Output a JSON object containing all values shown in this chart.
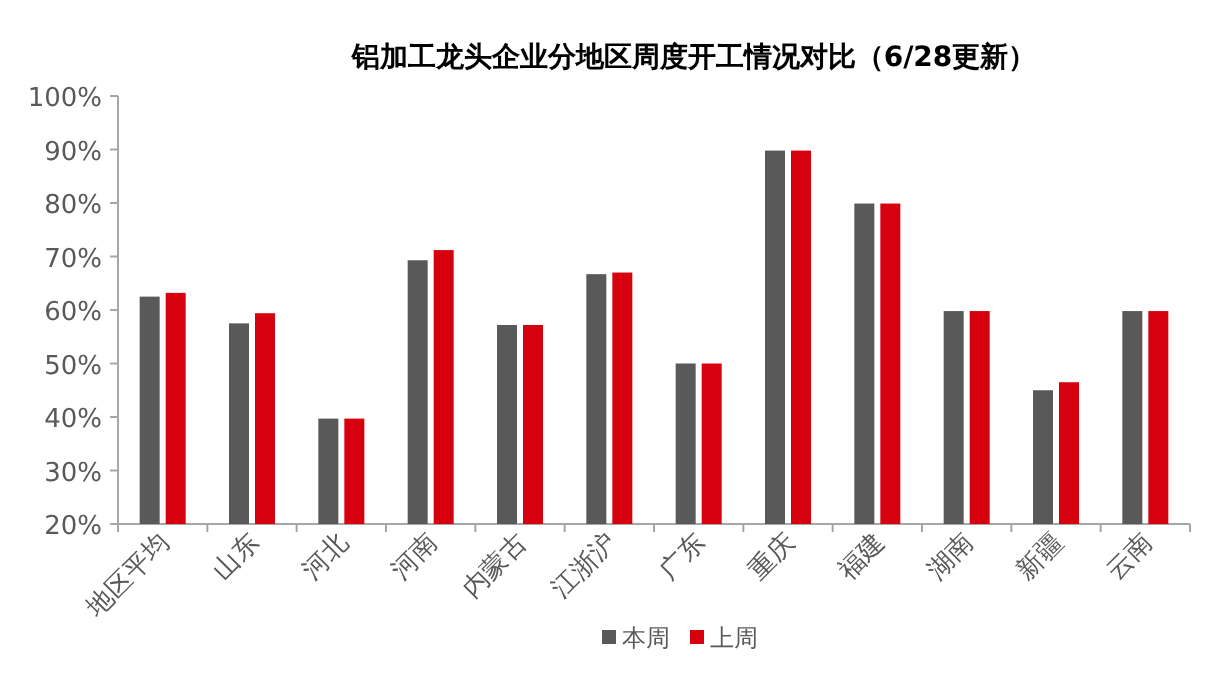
{
  "chart_data": {
    "type": "bar",
    "title": "铝加工龙头企业分地区周度开工情况对比（6/28更新）",
    "categories": [
      "地区平均",
      "山东",
      "河北",
      "河南",
      "内蒙古",
      "江浙沪",
      "广东",
      "重庆",
      "福建",
      "湖南",
      "新疆",
      "云南"
    ],
    "series": [
      {
        "name": "本周",
        "color": "#595959",
        "values": [
          62.5,
          57.5,
          39.7,
          69.3,
          57.2,
          66.7,
          50,
          89.8,
          79.9,
          59.8,
          45,
          59.8
        ]
      },
      {
        "name": "上周",
        "color": "#d7000f",
        "values": [
          63.2,
          59.4,
          39.7,
          71.2,
          57.2,
          67,
          50,
          89.8,
          79.9,
          59.8,
          46.5,
          59.8
        ]
      }
    ],
    "ylim": [
      20,
      100
    ],
    "yticks": [
      {
        "value": 20,
        "label": "20%"
      },
      {
        "value": 30,
        "label": "30%"
      },
      {
        "value": 40,
        "label": "40%"
      },
      {
        "value": 50,
        "label": "50%"
      },
      {
        "value": 60,
        "label": "60%"
      },
      {
        "value": 70,
        "label": "70%"
      },
      {
        "value": 80,
        "label": "80%"
      },
      {
        "value": 90,
        "label": "90%"
      },
      {
        "value": 100,
        "label": "100%"
      }
    ],
    "grid": false,
    "legend": "bottom"
  }
}
